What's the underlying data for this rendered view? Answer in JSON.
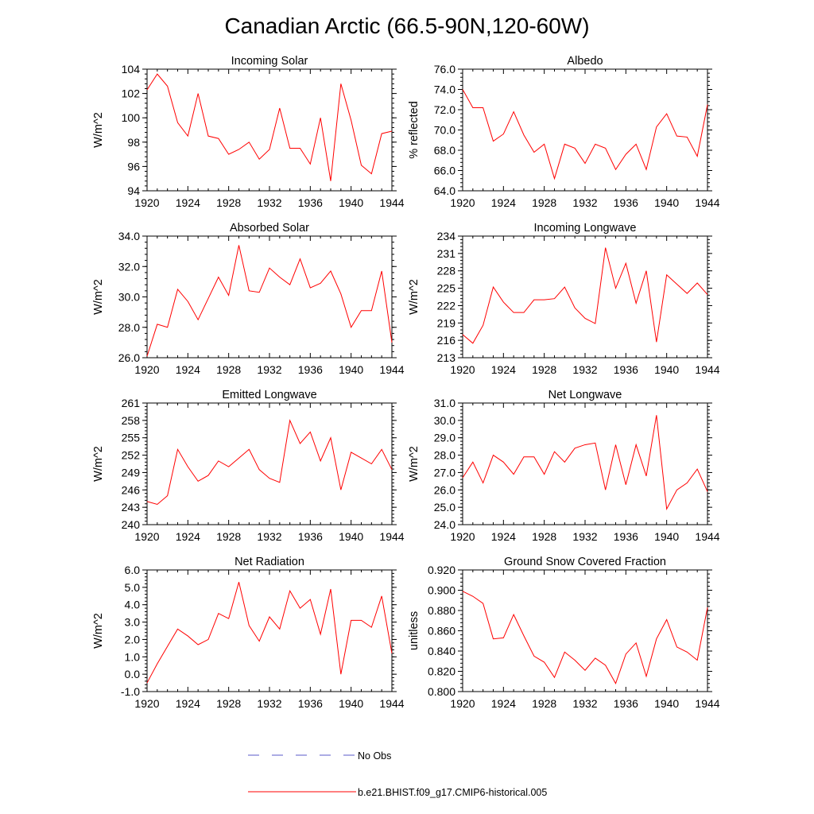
{
  "figure": {
    "title": "Canadian Arctic (66.5-90N,120-60W)"
  },
  "colors": {
    "model_line": "#ff0000",
    "obs_line": "#5a5ac8",
    "axis": "#000000"
  },
  "legend": {
    "entries": [
      {
        "label": "No Obs",
        "style": "dashed",
        "color": "#5a5ac8"
      },
      {
        "label": "b.e21.BHIST.f09_g17.CMIP6-historical.005",
        "style": "solid",
        "color": "#ff0000"
      }
    ]
  },
  "chart_data": [
    {
      "type": "line",
      "title": "Incoming Solar",
      "xlabel": "",
      "ylabel": "W/m^2",
      "xlim": [
        1920,
        1944
      ],
      "ylim": [
        94,
        104
      ],
      "xticks": [
        "1920",
        "1924",
        "1928",
        "1932",
        "1936",
        "1940",
        "1944"
      ],
      "yticks": [
        "94",
        "96",
        "98",
        "100",
        "102",
        "104"
      ],
      "x": [
        1920,
        1921,
        1922,
        1923,
        1924,
        1925,
        1926,
        1927,
        1928,
        1929,
        1930,
        1931,
        1932,
        1933,
        1934,
        1935,
        1936,
        1937,
        1938,
        1939,
        1940,
        1941,
        1942,
        1943,
        1944
      ],
      "series": [
        {
          "name": "b.e21.BHIST.f09_g17.CMIP6-historical.005",
          "values": [
            102.3,
            103.6,
            102.6,
            99.6,
            98.5,
            102.0,
            98.5,
            98.3,
            97.0,
            97.4,
            98.0,
            96.6,
            97.4,
            100.8,
            97.5,
            97.5,
            96.2,
            100.0,
            94.8,
            102.8,
            99.8,
            96.1,
            95.4,
            98.7,
            98.9
          ]
        }
      ]
    },
    {
      "type": "line",
      "title": "Albedo",
      "xlabel": "",
      "ylabel": "% reflected",
      "xlim": [
        1920,
        1944
      ],
      "ylim": [
        64,
        76
      ],
      "xticks": [
        "1920",
        "1924",
        "1928",
        "1932",
        "1936",
        "1940",
        "1944"
      ],
      "yticks": [
        "64.0",
        "66.0",
        "68.0",
        "70.0",
        "72.0",
        "74.0",
        "76.0"
      ],
      "x": [
        1920,
        1921,
        1922,
        1923,
        1924,
        1925,
        1926,
        1927,
        1928,
        1929,
        1930,
        1931,
        1932,
        1933,
        1934,
        1935,
        1936,
        1937,
        1938,
        1939,
        1940,
        1941,
        1942,
        1943,
        1944
      ],
      "series": [
        {
          "name": "b.e21.BHIST.f09_g17.CMIP6-historical.005",
          "values": [
            74.0,
            72.2,
            72.2,
            68.9,
            69.6,
            71.8,
            69.5,
            67.8,
            68.6,
            65.2,
            68.6,
            68.2,
            66.7,
            68.6,
            68.2,
            66.1,
            67.6,
            68.6,
            66.1,
            70.3,
            71.6,
            69.4,
            69.3,
            67.4,
            72.5
          ]
        }
      ]
    },
    {
      "type": "line",
      "title": "Absorbed Solar",
      "xlabel": "",
      "ylabel": "W/m^2",
      "xlim": [
        1920,
        1944
      ],
      "ylim": [
        26,
        34
      ],
      "xticks": [
        "1920",
        "1924",
        "1928",
        "1932",
        "1936",
        "1940",
        "1944"
      ],
      "yticks": [
        "26.0",
        "28.0",
        "30.0",
        "32.0",
        "34.0"
      ],
      "x": [
        1920,
        1921,
        1922,
        1923,
        1924,
        1925,
        1926,
        1927,
        1928,
        1929,
        1930,
        1931,
        1932,
        1933,
        1934,
        1935,
        1936,
        1937,
        1938,
        1939,
        1940,
        1941,
        1942,
        1943,
        1944
      ],
      "series": [
        {
          "name": "b.e21.BHIST.f09_g17.CMIP6-historical.005",
          "values": [
            26.1,
            28.2,
            28.0,
            30.5,
            29.7,
            28.5,
            29.9,
            31.3,
            30.1,
            33.4,
            30.4,
            30.3,
            31.9,
            31.3,
            30.8,
            32.5,
            30.6,
            30.9,
            31.7,
            30.2,
            28.0,
            29.1,
            29.1,
            31.7,
            27.0
          ]
        }
      ]
    },
    {
      "type": "line",
      "title": "Incoming Longwave",
      "xlabel": "",
      "ylabel": "W/m^2",
      "xlim": [
        1920,
        1944
      ],
      "ylim": [
        213,
        234
      ],
      "xticks": [
        "1920",
        "1924",
        "1928",
        "1932",
        "1936",
        "1940",
        "1944"
      ],
      "yticks": [
        "213",
        "216",
        "219",
        "222",
        "225",
        "228",
        "231",
        "234"
      ],
      "x": [
        1920,
        1921,
        1922,
        1923,
        1924,
        1925,
        1926,
        1927,
        1928,
        1929,
        1930,
        1931,
        1932,
        1933,
        1934,
        1935,
        1936,
        1937,
        1938,
        1939,
        1940,
        1941,
        1942,
        1943,
        1944
      ],
      "series": [
        {
          "name": "b.e21.BHIST.f09_g17.CMIP6-historical.005",
          "values": [
            217.0,
            215.5,
            218.6,
            225.2,
            222.6,
            220.8,
            220.8,
            223.0,
            223.0,
            223.2,
            225.2,
            221.6,
            219.8,
            218.9,
            232.0,
            225.0,
            229.3,
            222.4,
            228.0,
            215.7,
            227.3,
            225.7,
            224.1,
            225.9,
            223.9
          ]
        }
      ]
    },
    {
      "type": "line",
      "title": "Emitted Longwave",
      "xlabel": "",
      "ylabel": "W/m^2",
      "xlim": [
        1920,
        1944
      ],
      "ylim": [
        240,
        261
      ],
      "xticks": [
        "1920",
        "1924",
        "1928",
        "1932",
        "1936",
        "1940",
        "1944"
      ],
      "yticks": [
        "240",
        "243",
        "246",
        "249",
        "252",
        "255",
        "258",
        "261"
      ],
      "x": [
        1920,
        1921,
        1922,
        1923,
        1924,
        1925,
        1926,
        1927,
        1928,
        1929,
        1930,
        1931,
        1932,
        1933,
        1934,
        1935,
        1936,
        1937,
        1938,
        1939,
        1940,
        1941,
        1942,
        1943,
        1944
      ],
      "series": [
        {
          "name": "b.e21.BHIST.f09_g17.CMIP6-historical.005",
          "values": [
            244.0,
            243.5,
            245.0,
            253.0,
            250.0,
            247.5,
            248.5,
            251.0,
            250.0,
            251.5,
            253.0,
            249.5,
            248.0,
            247.3,
            258.0,
            254.0,
            256.0,
            251.0,
            255.0,
            246.0,
            252.5,
            251.5,
            250.5,
            253.0,
            249.5
          ]
        }
      ]
    },
    {
      "type": "line",
      "title": "Net Longwave",
      "xlabel": "",
      "ylabel": "W/m^2",
      "xlim": [
        1920,
        1944
      ],
      "ylim": [
        24,
        31
      ],
      "xticks": [
        "1920",
        "1924",
        "1928",
        "1932",
        "1936",
        "1940",
        "1944"
      ],
      "yticks": [
        "24.0",
        "25.0",
        "26.0",
        "27.0",
        "28.0",
        "29.0",
        "30.0",
        "31.0"
      ],
      "x": [
        1920,
        1921,
        1922,
        1923,
        1924,
        1925,
        1926,
        1927,
        1928,
        1929,
        1930,
        1931,
        1932,
        1933,
        1934,
        1935,
        1936,
        1937,
        1938,
        1939,
        1940,
        1941,
        1942,
        1943,
        1944
      ],
      "series": [
        {
          "name": "b.e21.BHIST.f09_g17.CMIP6-historical.005",
          "values": [
            26.7,
            27.6,
            26.4,
            28.0,
            27.6,
            26.9,
            27.9,
            27.9,
            26.9,
            28.2,
            27.6,
            28.4,
            28.6,
            28.7,
            26.0,
            28.6,
            26.3,
            28.6,
            26.8,
            30.3,
            24.9,
            26.0,
            26.4,
            27.2,
            25.9
          ]
        }
      ]
    },
    {
      "type": "line",
      "title": "Net Radiation",
      "xlabel": "",
      "ylabel": "W/m^2",
      "xlim": [
        1920,
        1944
      ],
      "ylim": [
        -1,
        6
      ],
      "xticks": [
        "1920",
        "1924",
        "1928",
        "1932",
        "1936",
        "1940",
        "1944"
      ],
      "yticks": [
        "-1.0",
        "0.0",
        "1.0",
        "2.0",
        "3.0",
        "4.0",
        "5.0",
        "6.0"
      ],
      "x": [
        1920,
        1921,
        1922,
        1923,
        1924,
        1925,
        1926,
        1927,
        1928,
        1929,
        1930,
        1931,
        1932,
        1933,
        1934,
        1935,
        1936,
        1937,
        1938,
        1939,
        1940,
        1941,
        1942,
        1943,
        1944
      ],
      "series": [
        {
          "name": "b.e21.BHIST.f09_g17.CMIP6-historical.005",
          "values": [
            -0.5,
            0.6,
            1.6,
            2.6,
            2.2,
            1.7,
            2.0,
            3.5,
            3.2,
            5.3,
            2.8,
            1.9,
            3.3,
            2.6,
            4.8,
            3.8,
            4.3,
            2.3,
            4.9,
            0.0,
            3.1,
            3.1,
            2.7,
            4.5,
            1.2
          ]
        }
      ]
    },
    {
      "type": "line",
      "title": "Ground Snow Covered Fraction",
      "xlabel": "",
      "ylabel": "unitless",
      "xlim": [
        1920,
        1944
      ],
      "ylim": [
        0.8,
        0.92
      ],
      "xticks": [
        "1920",
        "1924",
        "1928",
        "1932",
        "1936",
        "1940",
        "1944"
      ],
      "yticks": [
        "0.800",
        "0.820",
        "0.840",
        "0.860",
        "0.880",
        "0.900",
        "0.920"
      ],
      "x": [
        1920,
        1921,
        1922,
        1923,
        1924,
        1925,
        1926,
        1927,
        1928,
        1929,
        1930,
        1931,
        1932,
        1933,
        1934,
        1935,
        1936,
        1937,
        1938,
        1939,
        1940,
        1941,
        1942,
        1943,
        1944
      ],
      "series": [
        {
          "name": "b.e21.BHIST.f09_g17.CMIP6-historical.005",
          "values": [
            0.899,
            0.894,
            0.887,
            0.852,
            0.853,
            0.876,
            0.855,
            0.835,
            0.829,
            0.814,
            0.839,
            0.831,
            0.821,
            0.833,
            0.826,
            0.808,
            0.837,
            0.848,
            0.815,
            0.852,
            0.871,
            0.844,
            0.839,
            0.831,
            0.883
          ]
        }
      ]
    }
  ]
}
